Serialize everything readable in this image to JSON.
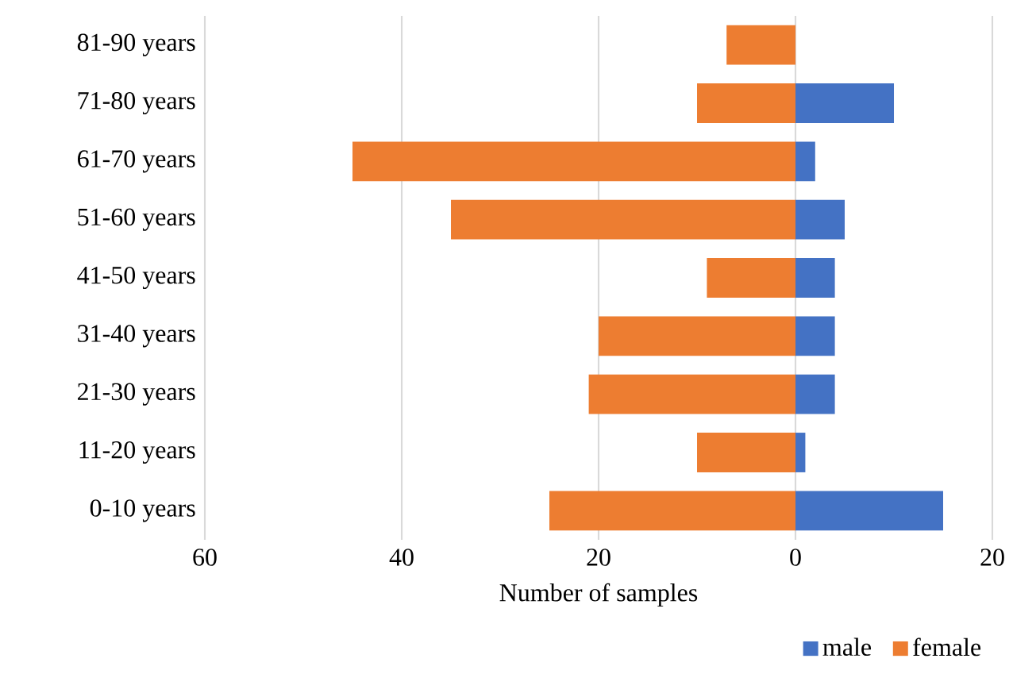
{
  "chart_data": {
    "type": "bar",
    "orientation": "horizontal",
    "xlabel": "Number of samples",
    "categories": [
      "81-90 years",
      "71-80 years",
      "61-70 years",
      "51-60 years",
      "41-50 years",
      "31-40 years",
      "21-30 years",
      "11-20 years",
      "0-10 years"
    ],
    "series": [
      {
        "name": "female",
        "color": "#ed7d31",
        "values": [
          -7,
          -10,
          -45,
          -35,
          -9,
          -20,
          -21,
          -10,
          -25
        ]
      },
      {
        "name": "male",
        "color": "#4472c4",
        "values": [
          0,
          10,
          2,
          5,
          4,
          4,
          4,
          1,
          15
        ]
      }
    ],
    "xlim": [
      -60,
      20
    ],
    "xticks": [
      {
        "value": -60,
        "label": "60"
      },
      {
        "value": -40,
        "label": "40"
      },
      {
        "value": -20,
        "label": "20"
      },
      0,
      20
    ],
    "grid": "x",
    "legend": "bottom right",
    "stacked": true
  }
}
